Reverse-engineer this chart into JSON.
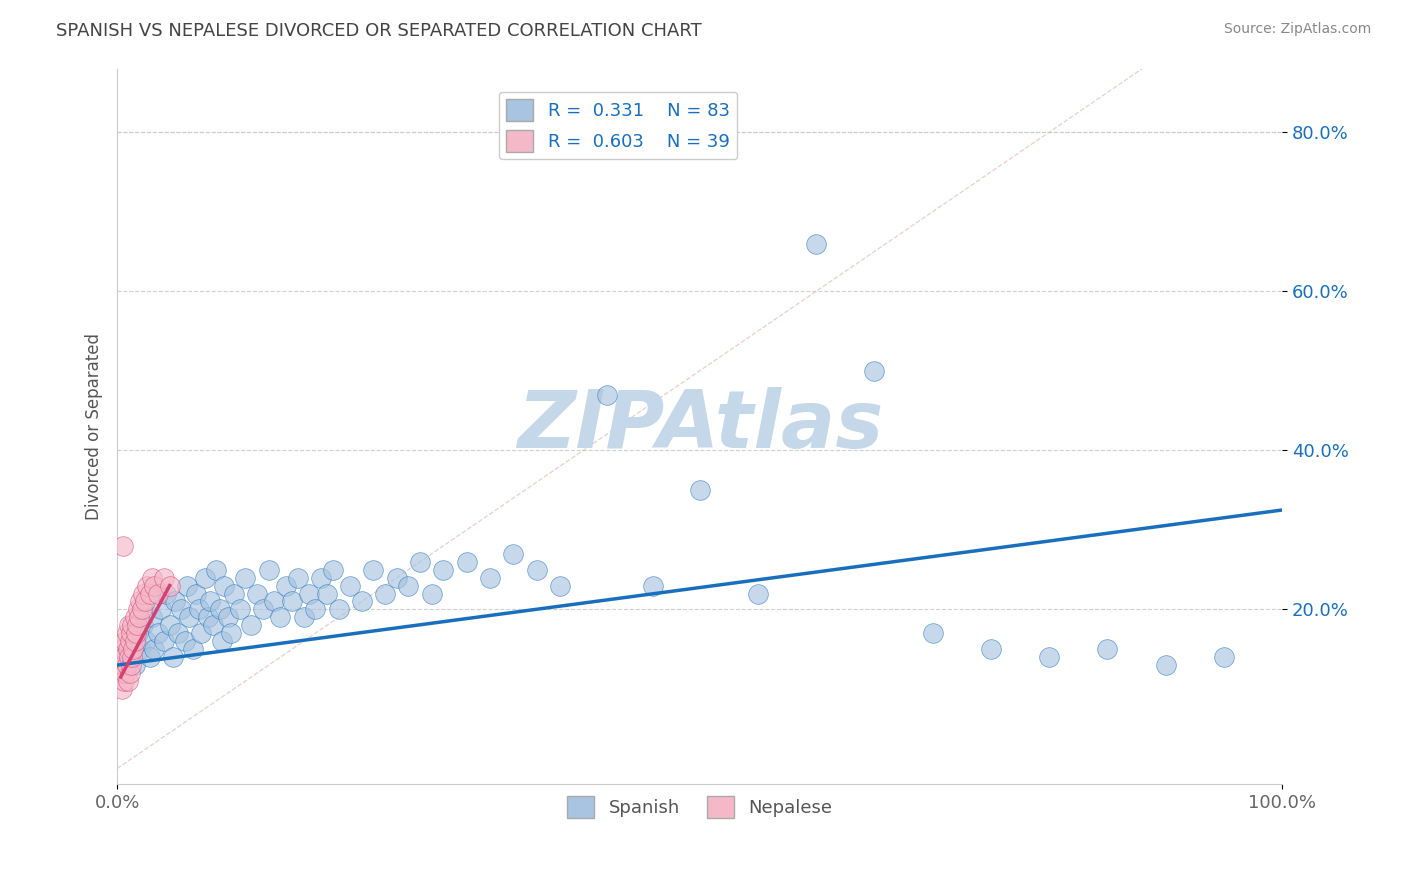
{
  "title": "SPANISH VS NEPALESE DIVORCED OR SEPARATED CORRELATION CHART",
  "source": "Source: ZipAtlas.com",
  "ylabel": "Divorced or Separated",
  "ytick_labels": [
    "80.0%",
    "60.0%",
    "40.0%",
    "20.0%"
  ],
  "ytick_values": [
    0.8,
    0.6,
    0.4,
    0.2
  ],
  "xlim": [
    0,
    1.0
  ],
  "ylim": [
    -0.02,
    0.88
  ],
  "spanish_R": 0.331,
  "spanish_N": 83,
  "nepalese_R": 0.603,
  "nepalese_N": 39,
  "spanish_color": "#a8c4e0",
  "nepalese_color": "#f4b8c8",
  "spanish_line_color": "#1a6fbd",
  "nepalese_line_color": "#d44070",
  "watermark": "ZIPAtlas",
  "watermark_color": "#c5d8ea",
  "background_color": "#ffffff",
  "grid_color": "#cccccc",
  "spanish_x": [
    0.005,
    0.008,
    0.01,
    0.012,
    0.015,
    0.018,
    0.02,
    0.022,
    0.025,
    0.028,
    0.03,
    0.032,
    0.035,
    0.038,
    0.04,
    0.042,
    0.045,
    0.048,
    0.05,
    0.052,
    0.055,
    0.058,
    0.06,
    0.062,
    0.065,
    0.068,
    0.07,
    0.072,
    0.075,
    0.078,
    0.08,
    0.082,
    0.085,
    0.088,
    0.09,
    0.092,
    0.095,
    0.098,
    0.1,
    0.105,
    0.11,
    0.115,
    0.12,
    0.125,
    0.13,
    0.135,
    0.14,
    0.145,
    0.15,
    0.155,
    0.16,
    0.165,
    0.17,
    0.175,
    0.18,
    0.185,
    0.19,
    0.2,
    0.21,
    0.22,
    0.23,
    0.24,
    0.25,
    0.26,
    0.27,
    0.28,
    0.3,
    0.32,
    0.34,
    0.36,
    0.38,
    0.42,
    0.46,
    0.5,
    0.55,
    0.6,
    0.65,
    0.7,
    0.75,
    0.8,
    0.85,
    0.9,
    0.95
  ],
  "spanish_y": [
    0.14,
    0.13,
    0.15,
    0.16,
    0.13,
    0.17,
    0.15,
    0.18,
    0.16,
    0.14,
    0.19,
    0.15,
    0.17,
    0.2,
    0.16,
    0.22,
    0.18,
    0.14,
    0.21,
    0.17,
    0.2,
    0.16,
    0.23,
    0.19,
    0.15,
    0.22,
    0.2,
    0.17,
    0.24,
    0.19,
    0.21,
    0.18,
    0.25,
    0.2,
    0.16,
    0.23,
    0.19,
    0.17,
    0.22,
    0.2,
    0.24,
    0.18,
    0.22,
    0.2,
    0.25,
    0.21,
    0.19,
    0.23,
    0.21,
    0.24,
    0.19,
    0.22,
    0.2,
    0.24,
    0.22,
    0.25,
    0.2,
    0.23,
    0.21,
    0.25,
    0.22,
    0.24,
    0.23,
    0.26,
    0.22,
    0.25,
    0.26,
    0.24,
    0.27,
    0.25,
    0.23,
    0.47,
    0.23,
    0.35,
    0.22,
    0.66,
    0.5,
    0.17,
    0.15,
    0.14,
    0.15,
    0.13,
    0.14
  ],
  "nepalese_x": [
    0.003,
    0.004,
    0.005,
    0.005,
    0.006,
    0.006,
    0.007,
    0.007,
    0.008,
    0.008,
    0.009,
    0.009,
    0.01,
    0.01,
    0.011,
    0.011,
    0.012,
    0.012,
    0.013,
    0.013,
    0.014,
    0.015,
    0.015,
    0.016,
    0.017,
    0.018,
    0.019,
    0.02,
    0.021,
    0.022,
    0.024,
    0.026,
    0.028,
    0.03,
    0.032,
    0.035,
    0.04,
    0.045,
    0.005
  ],
  "nepalese_y": [
    0.12,
    0.1,
    0.13,
    0.15,
    0.11,
    0.14,
    0.12,
    0.16,
    0.13,
    0.17,
    0.11,
    0.15,
    0.14,
    0.18,
    0.12,
    0.16,
    0.13,
    0.17,
    0.14,
    0.18,
    0.15,
    0.16,
    0.19,
    0.17,
    0.18,
    0.2,
    0.19,
    0.21,
    0.2,
    0.22,
    0.21,
    0.23,
    0.22,
    0.24,
    0.23,
    0.22,
    0.24,
    0.23,
    0.28
  ],
  "spanish_line_x0": 0.0,
  "spanish_line_x1": 1.0,
  "spanish_line_y0": 0.13,
  "spanish_line_y1": 0.325,
  "nepalese_line_x0": 0.003,
  "nepalese_line_x1": 0.045,
  "nepalese_line_y0": 0.115,
  "nepalese_line_y1": 0.23
}
